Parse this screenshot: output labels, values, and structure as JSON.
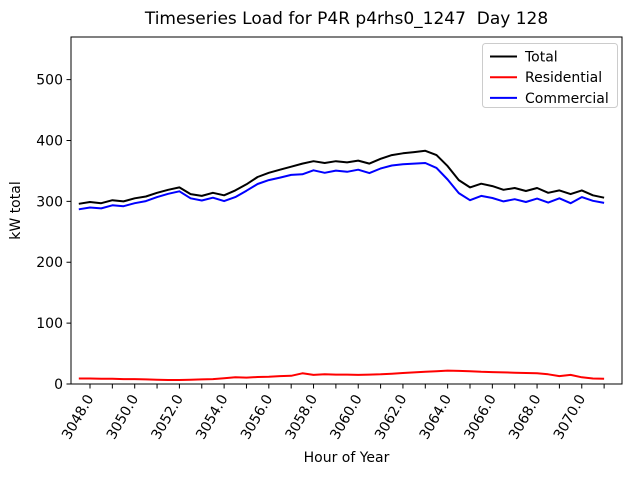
{
  "chart_data": {
    "type": "line",
    "title": "Timeseries Load for P4R p4rhs0_1247  Day 128",
    "xlabel": "Hour of Year",
    "ylabel": "kW total",
    "xlim": [
      3047.15,
      3071.8
    ],
    "ylim": [
      0,
      570
    ],
    "grid": false,
    "x_minor_tick_step": 1.0,
    "xticks": [
      3048,
      3050,
      3052,
      3054,
      3056,
      3058,
      3060,
      3062,
      3064,
      3066,
      3068,
      3070
    ],
    "xticklabels": [
      "3048.0",
      "3050.0",
      "3052.0",
      "3054.0",
      "3056.0",
      "3058.0",
      "3060.0",
      "3062.0",
      "3064.0",
      "3066.0",
      "3068.0",
      "3070.0"
    ],
    "xticklabel_rotation_deg": 60,
    "yticks": [
      0,
      100,
      200,
      300,
      400,
      500
    ],
    "yticklabels": [
      "0",
      "100",
      "200",
      "300",
      "400",
      "500"
    ],
    "legend": {
      "position": "upper right",
      "entries": [
        {
          "label": "Total",
          "color": "#000000"
        },
        {
          "label": "Residential",
          "color": "#ff0000"
        },
        {
          "label": "Commercial",
          "color": "#0000ff"
        }
      ]
    },
    "x": [
      3047.5,
      3048.0,
      3048.5,
      3049.0,
      3049.5,
      3050.0,
      3050.5,
      3051.0,
      3051.5,
      3052.0,
      3052.5,
      3053.0,
      3053.5,
      3054.0,
      3054.5,
      3055.0,
      3055.5,
      3056.0,
      3056.5,
      3057.0,
      3057.5,
      3058.0,
      3058.5,
      3059.0,
      3059.5,
      3060.0,
      3060.5,
      3061.0,
      3061.5,
      3062.0,
      3062.5,
      3063.0,
      3063.5,
      3064.0,
      3064.5,
      3065.0,
      3065.5,
      3066.0,
      3066.5,
      3067.0,
      3067.5,
      3068.0,
      3068.5,
      3069.0,
      3069.5,
      3070.0,
      3070.5,
      3071.0
    ],
    "series": [
      {
        "name": "Total",
        "color": "#000000",
        "values": [
          296,
          299,
          297,
          302,
          300,
          305,
          308,
          314,
          319,
          323,
          312,
          309,
          314,
          310,
          318,
          328,
          340,
          347,
          352,
          357,
          362,
          366,
          363,
          366,
          364,
          367,
          362,
          370,
          376,
          379,
          381,
          383,
          376,
          358,
          335,
          323,
          329,
          325,
          319,
          322,
          317,
          322,
          314,
          318,
          312,
          318,
          310,
          306
        ]
      },
      {
        "name": "Residential",
        "color": "#ff0000",
        "values": [
          9,
          9,
          8.5,
          8.5,
          8,
          8,
          7.5,
          7,
          6.5,
          6.5,
          7,
          7.5,
          8,
          9.5,
          11,
          10.5,
          11.5,
          12,
          13,
          13.5,
          17.5,
          15,
          16,
          15.5,
          15.5,
          15,
          15.5,
          16,
          17,
          18,
          19,
          20,
          21,
          22,
          21.5,
          21,
          20,
          19.5,
          19,
          18.5,
          18,
          17.5,
          16,
          13,
          15,
          11,
          9,
          8.5
        ]
      },
      {
        "name": "Commercial",
        "color": "#0000ff",
        "values": [
          287,
          290,
          288.5,
          293.5,
          292,
          297,
          300.5,
          307,
          312.5,
          316.5,
          305,
          301.5,
          306,
          300.5,
          307,
          317.5,
          328.5,
          335,
          339,
          343.5,
          344.5,
          351,
          347,
          350.5,
          348.5,
          352,
          346.5,
          354,
          359,
          361,
          362,
          363,
          355,
          336,
          313.5,
          302,
          309,
          305.5,
          300,
          303.5,
          299,
          304.5,
          298,
          305,
          297,
          307,
          301,
          297.5
        ]
      }
    ]
  }
}
